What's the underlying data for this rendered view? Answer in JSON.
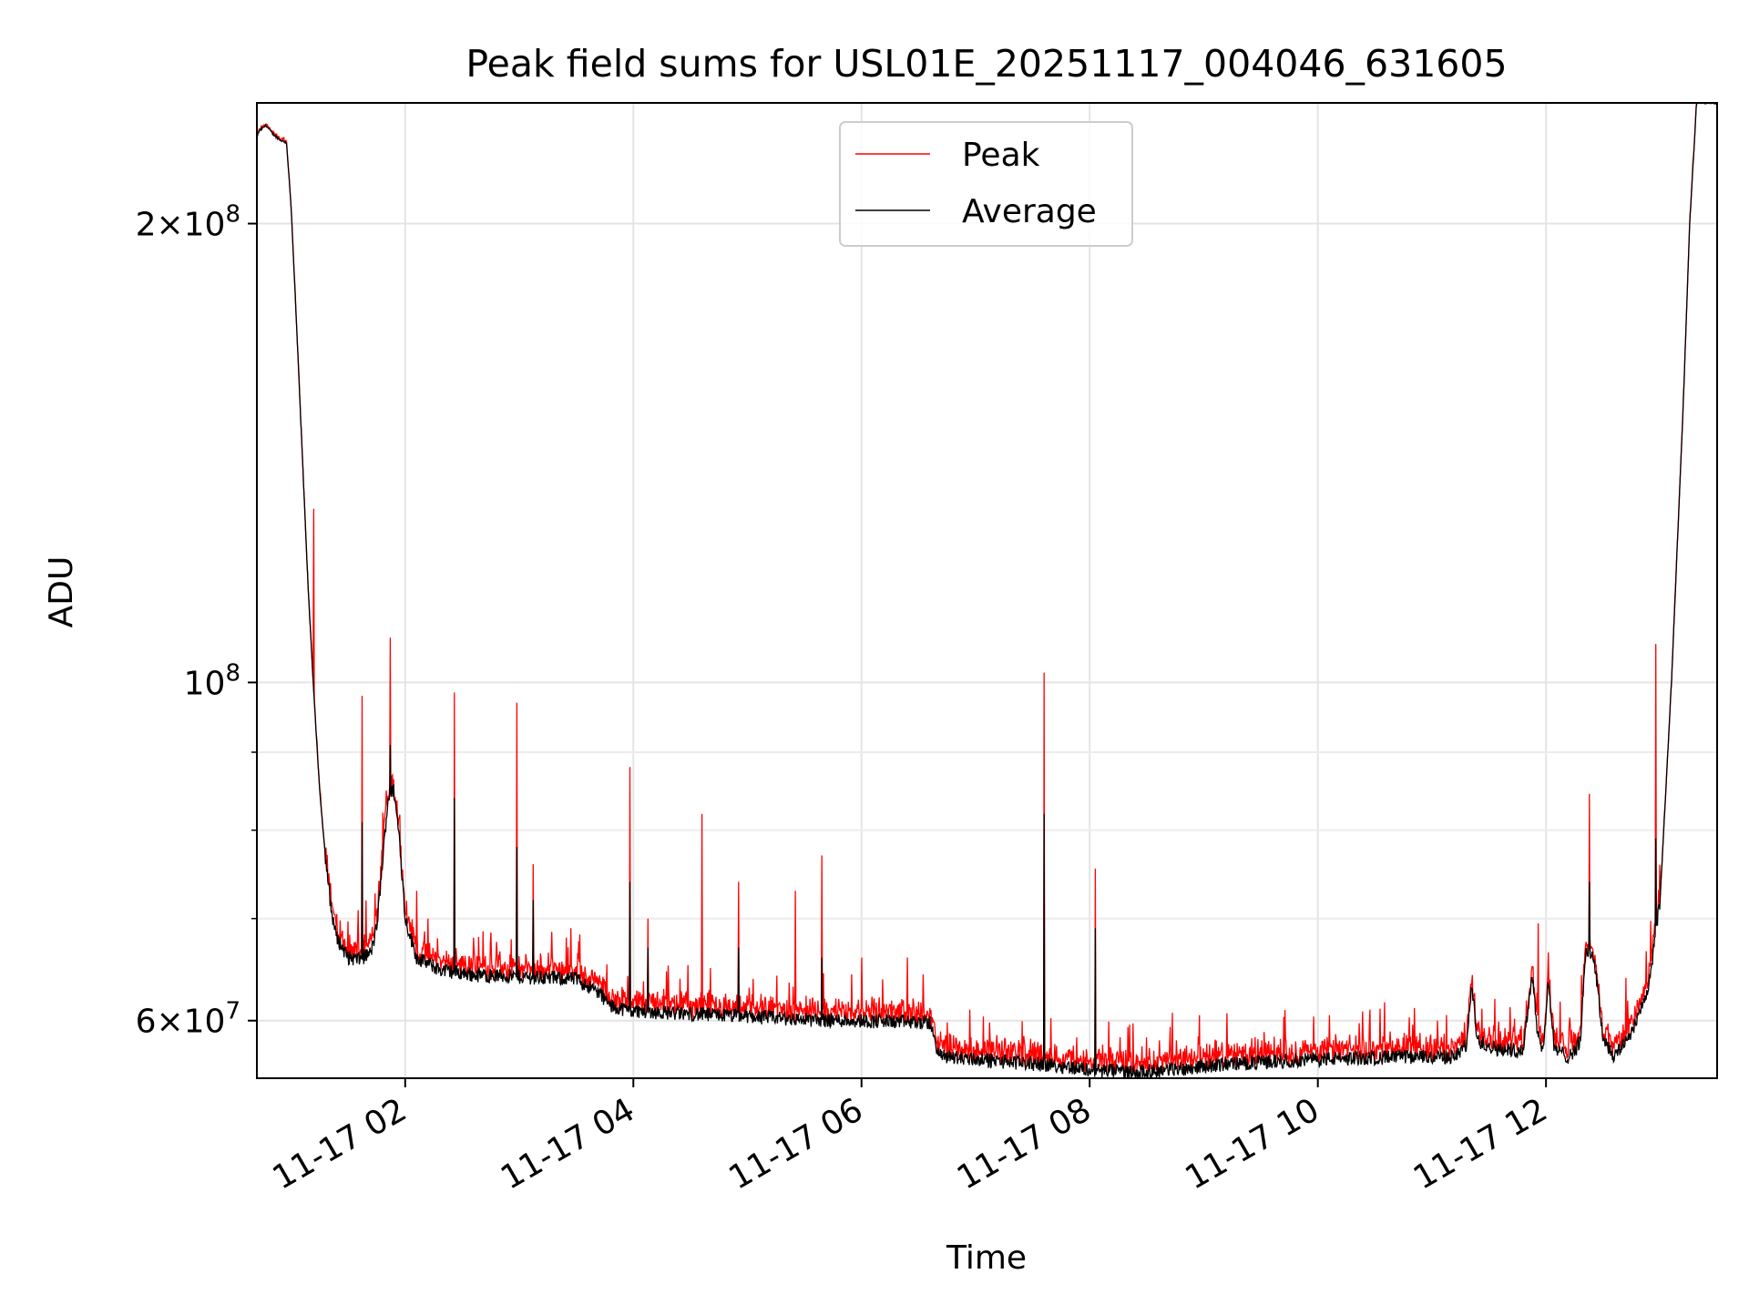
{
  "chart_data": {
    "type": "line",
    "title": "Peak field sums for USL01E_20251117_004046_631605",
    "xlabel": "Time",
    "ylabel": "ADU",
    "yscale": "log",
    "grid": true,
    "legend_position": "top-center",
    "x_units": "hours since 2025-11-17 00:00",
    "xlim": [
      0.7,
      13.5
    ],
    "ylim": [
      55000000,
      240000000
    ],
    "x_ticks": [
      {
        "value": 2,
        "label": "11-17 02"
      },
      {
        "value": 4,
        "label": "11-17 04"
      },
      {
        "value": 6,
        "label": "11-17 06"
      },
      {
        "value": 8,
        "label": "11-17 08"
      },
      {
        "value": 10,
        "label": "11-17 10"
      },
      {
        "value": 12,
        "label": "11-17 12"
      }
    ],
    "y_ticks_major": [
      {
        "value": 60000000,
        "mant": "6",
        "exp": "7"
      },
      {
        "value": 100000000,
        "mant": "",
        "exp": "8"
      },
      {
        "value": 200000000,
        "mant": "2",
        "exp": "8"
      }
    ],
    "y_ticks_minor": [
      70000000,
      80000000,
      90000000
    ],
    "baseline": [
      [
        0.68,
        226000000
      ],
      [
        0.72,
        230000000
      ],
      [
        0.78,
        232000000
      ],
      [
        0.84,
        229000000
      ],
      [
        0.9,
        227000000
      ],
      [
        0.96,
        226000000
      ],
      [
        1.0,
        205000000
      ],
      [
        1.05,
        170000000
      ],
      [
        1.1,
        140000000
      ],
      [
        1.15,
        115000000
      ],
      [
        1.2,
        98000000
      ],
      [
        1.25,
        85000000
      ],
      [
        1.3,
        77000000
      ],
      [
        1.35,
        71000000
      ],
      [
        1.4,
        68000000
      ],
      [
        1.5,
        66000000
      ],
      [
        1.6,
        65800000
      ],
      [
        1.7,
        66500000
      ],
      [
        1.75,
        69000000
      ],
      [
        1.8,
        76000000
      ],
      [
        1.85,
        84000000
      ],
      [
        1.9,
        85000000
      ],
      [
        1.95,
        79000000
      ],
      [
        2.0,
        70000000
      ],
      [
        2.1,
        66000000
      ],
      [
        2.3,
        64800000
      ],
      [
        2.6,
        64300000
      ],
      [
        3.0,
        64100000
      ],
      [
        3.3,
        64000000
      ],
      [
        3.5,
        63900000
      ],
      [
        3.7,
        62600000
      ],
      [
        3.8,
        61300000
      ],
      [
        4.0,
        60900000
      ],
      [
        4.5,
        60600000
      ],
      [
        5.0,
        60400000
      ],
      [
        5.5,
        60100000
      ],
      [
        6.0,
        60000000
      ],
      [
        6.6,
        59800000
      ],
      [
        6.68,
        56900000
      ],
      [
        7.0,
        56600000
      ],
      [
        7.4,
        56300000
      ],
      [
        7.8,
        56000000
      ],
      [
        8.0,
        55700000
      ],
      [
        8.4,
        55500000
      ],
      [
        8.8,
        55800000
      ],
      [
        9.2,
        56200000
      ],
      [
        9.6,
        56400000
      ],
      [
        10.0,
        56600000
      ],
      [
        10.4,
        56700000
      ],
      [
        10.8,
        56800000
      ],
      [
        11.2,
        56800000
      ],
      [
        11.3,
        57800000
      ],
      [
        11.35,
        63000000
      ],
      [
        11.4,
        58200000
      ],
      [
        11.6,
        57400000
      ],
      [
        11.8,
        57400000
      ],
      [
        11.88,
        64500000
      ],
      [
        11.93,
        58500000
      ],
      [
        11.98,
        57500000
      ],
      [
        12.02,
        64000000
      ],
      [
        12.07,
        57500000
      ],
      [
        12.2,
        56800000
      ],
      [
        12.3,
        58000000
      ],
      [
        12.35,
        67000000
      ],
      [
        12.42,
        66000000
      ],
      [
        12.5,
        58500000
      ],
      [
        12.6,
        56800000
      ],
      [
        12.75,
        59000000
      ],
      [
        12.9,
        63000000
      ],
      [
        13.0,
        72000000
      ],
      [
        13.1,
        100000000
      ],
      [
        13.2,
        150000000
      ],
      [
        13.26,
        200000000
      ],
      [
        13.32,
        240000000
      ],
      [
        13.5,
        240000000
      ]
    ],
    "series": [
      {
        "name": "Peak",
        "color": "#ff0000",
        "spikes": [
          [
            1.2,
            130000000
          ],
          [
            1.62,
            98000000
          ],
          [
            1.87,
            107000000
          ],
          [
            2.1,
            73000000
          ],
          [
            2.2,
            70000000
          ],
          [
            2.43,
            98500000
          ],
          [
            2.6,
            68000000
          ],
          [
            2.98,
            97000000
          ],
          [
            3.12,
            76000000
          ],
          [
            3.45,
            69000000
          ],
          [
            3.97,
            88000000
          ],
          [
            4.13,
            70000000
          ],
          [
            4.6,
            82000000
          ],
          [
            4.92,
            74000000
          ],
          [
            5.42,
            73000000
          ],
          [
            5.65,
            77000000
          ],
          [
            6.0,
            66000000
          ],
          [
            6.4,
            66000000
          ],
          [
            6.95,
            61000000
          ],
          [
            7.5,
            58000000
          ],
          [
            7.6,
            101500000
          ],
          [
            8.05,
            75500000
          ],
          [
            8.5,
            58500000
          ],
          [
            9.1,
            58300000
          ],
          [
            10.1,
            60500000
          ],
          [
            10.45,
            59500000
          ],
          [
            10.8,
            60300000
          ],
          [
            11.05,
            60000000
          ],
          [
            11.55,
            62000000
          ],
          [
            11.93,
            69500000
          ],
          [
            12.38,
            84500000
          ],
          [
            12.7,
            64000000
          ],
          [
            12.96,
            106000000
          ]
        ]
      },
      {
        "name": "Average",
        "color": "#000000",
        "spikes": [
          [
            1.62,
            81000000
          ],
          [
            1.87,
            91000000
          ],
          [
            2.43,
            84000000
          ],
          [
            2.98,
            78000000
          ],
          [
            3.12,
            72000000
          ],
          [
            3.97,
            74000000
          ],
          [
            4.13,
            67000000
          ],
          [
            4.92,
            67000000
          ],
          [
            5.65,
            66000000
          ],
          [
            7.6,
            82000000
          ],
          [
            8.05,
            69000000
          ],
          [
            11.35,
            63000000
          ],
          [
            12.38,
            74000000
          ],
          [
            12.96,
            79000000
          ]
        ]
      }
    ]
  }
}
